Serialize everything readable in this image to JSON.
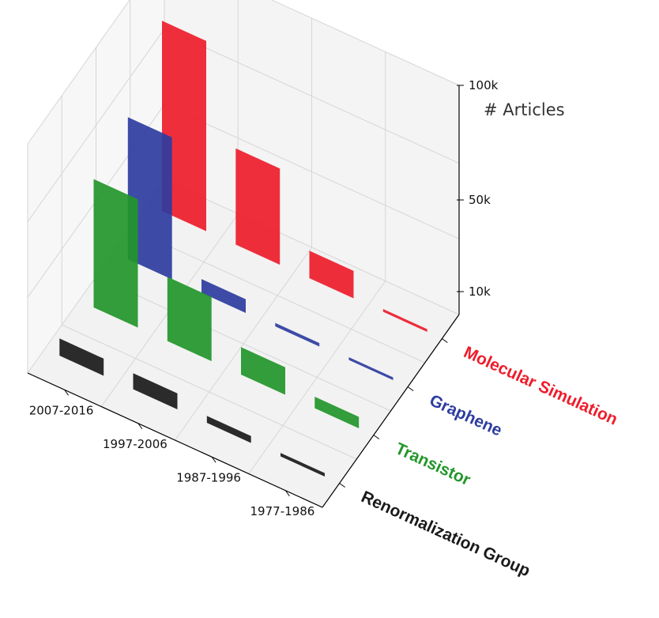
{
  "chart_data": {
    "type": "bar3d",
    "title": "",
    "zlabel": "# Articles",
    "categories": [
      "1977-1986",
      "1987-1996",
      "1997-2006",
      "2007-2016"
    ],
    "z_ticks": [
      {
        "value": 10000,
        "label": "10k"
      },
      {
        "value": 50000,
        "label": "50k"
      },
      {
        "value": 100000,
        "label": "100k"
      }
    ],
    "zlim": [
      0,
      100000
    ],
    "grid": true,
    "series": [
      {
        "name": "Renormalization Group",
        "color": "#1a1a1a",
        "values": [
          1500,
          3000,
          7000,
          7500
        ]
      },
      {
        "name": "Transistor",
        "color": "#22962a",
        "values": [
          5000,
          12000,
          28000,
          56000
        ]
      },
      {
        "name": "Graphene",
        "color": "#2e3da0",
        "values": [
          300,
          1500,
          6000,
          62000
        ]
      },
      {
        "name": "Molecular Simulation",
        "color": "#ee1c2b",
        "values": [
          1000,
          12000,
          42000,
          83000
        ]
      }
    ]
  }
}
